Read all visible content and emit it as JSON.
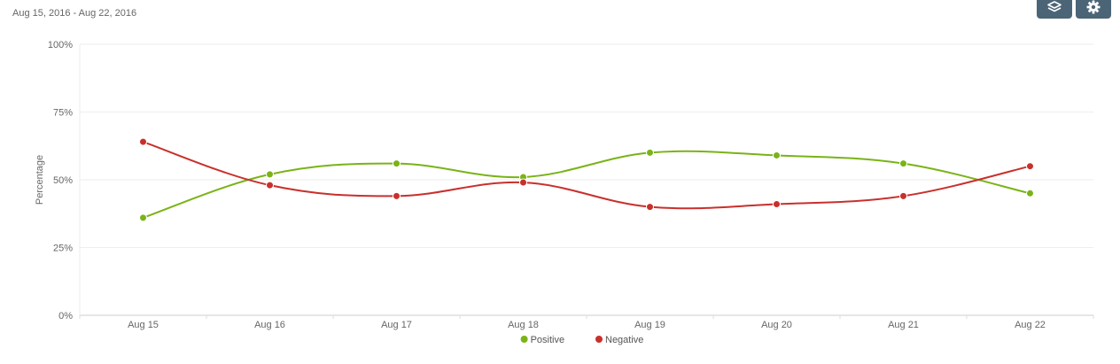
{
  "header": {
    "date_range": "Aug 15, 2016 - Aug 22, 2016"
  },
  "toolbar": {
    "buttons": [
      {
        "icon": "export-stack-icon"
      },
      {
        "icon": "gear-icon"
      }
    ],
    "button_color": "#4b6577"
  },
  "chart_data": {
    "type": "line",
    "title": "",
    "xlabel": "",
    "ylabel": "Percentage",
    "categories": [
      "Aug 15",
      "Aug 16",
      "Aug 17",
      "Aug 18",
      "Aug 19",
      "Aug 20",
      "Aug 21",
      "Aug 22"
    ],
    "ylim": [
      0,
      100
    ],
    "yticks": [
      "0%",
      "25%",
      "50%",
      "75%",
      "100%"
    ],
    "grid": true,
    "legend_position": "bottom-center",
    "series": [
      {
        "name": "Positive",
        "color": "#7ab317",
        "values": [
          36,
          52,
          56,
          51,
          60,
          59,
          56,
          45
        ]
      },
      {
        "name": "Negative",
        "color": "#c9302c",
        "values": [
          64,
          48,
          44,
          49,
          40,
          41,
          44,
          55
        ]
      }
    ]
  }
}
